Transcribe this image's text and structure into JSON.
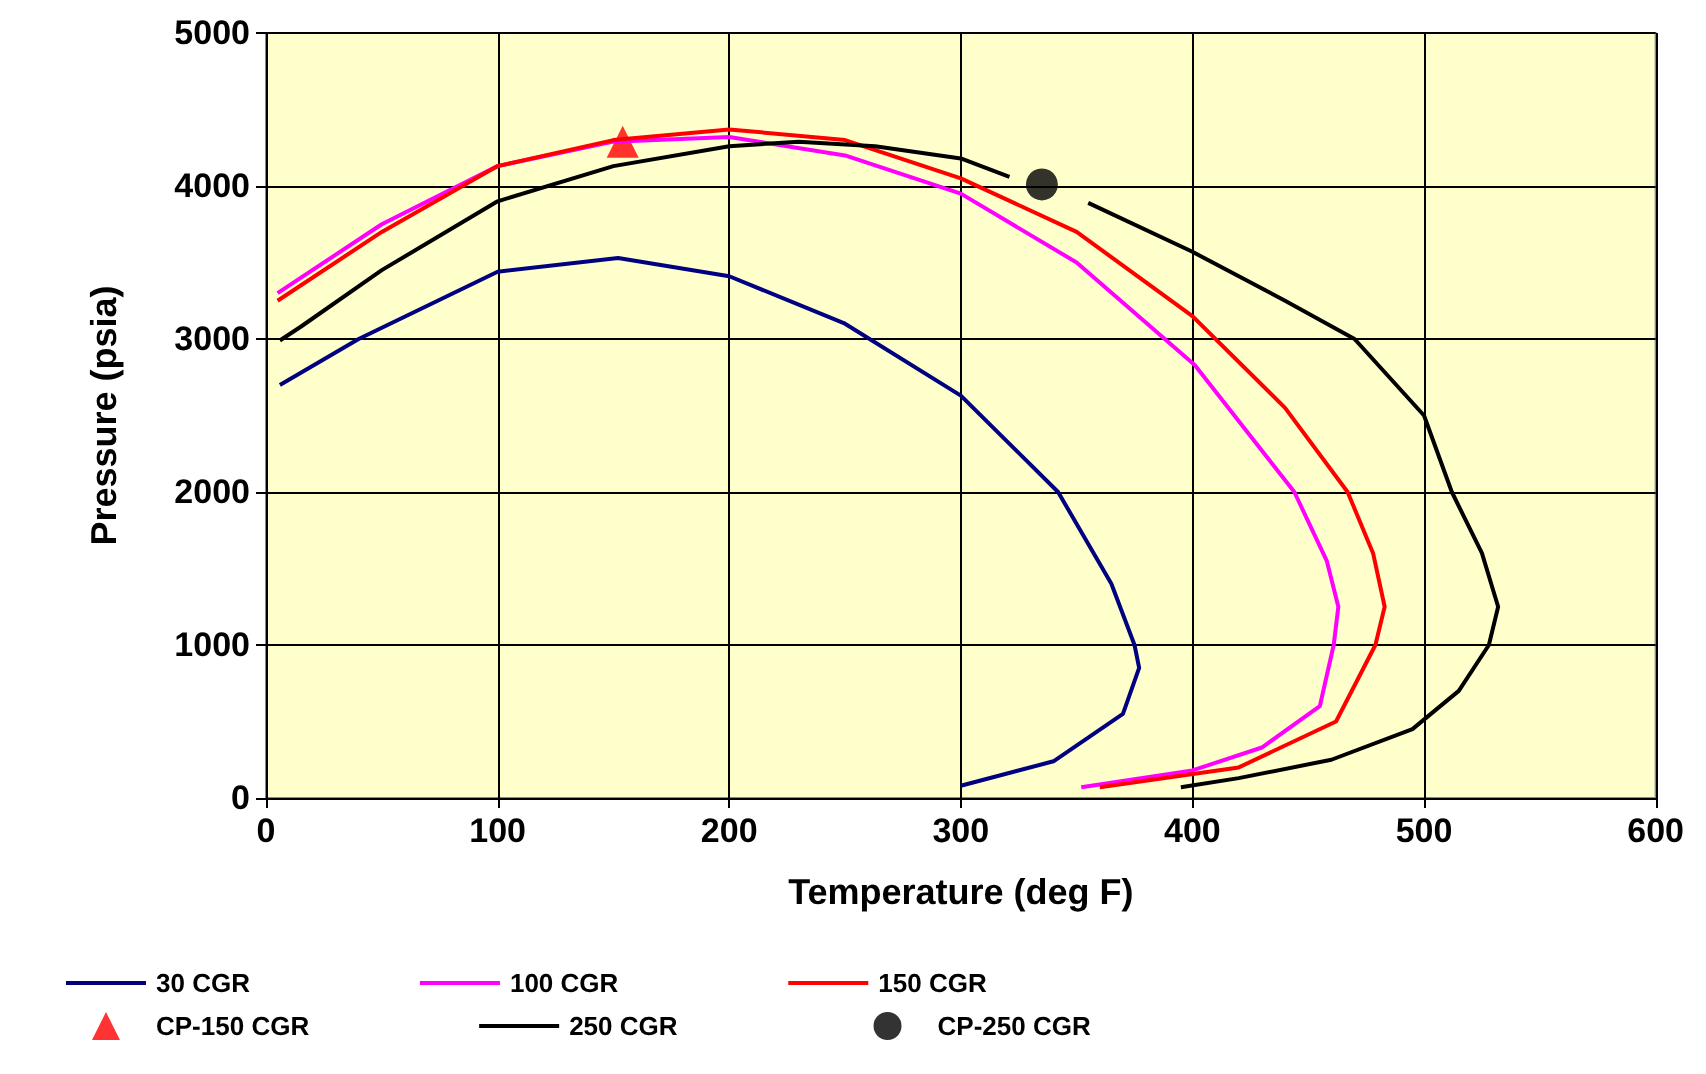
{
  "chart_data": {
    "type": "line",
    "xlabel": "Temperature (deg F)",
    "ylabel": "Pressure (psia)",
    "xlim": [
      0,
      600
    ],
    "xticks": [
      0,
      100,
      200,
      300,
      400,
      500,
      600
    ],
    "ylim": [
      0,
      5000
    ],
    "yticks": [
      0,
      1000,
      2000,
      3000,
      4000,
      5000
    ],
    "grid": true,
    "legend": "bottom",
    "marker": "none",
    "line_style": "solid",
    "series": [
      {
        "name": "30 CGR",
        "color": "#000080",
        "x": [
          6,
          40,
          100,
          152,
          200,
          250,
          300,
          342,
          365,
          375,
          377,
          370,
          340,
          300
        ],
        "values": [
          2700,
          3000,
          3440,
          3530,
          3410,
          3100,
          2630,
          2000,
          1400,
          1000,
          850,
          550,
          240,
          80
        ]
      },
      {
        "name": "100 CGR",
        "color": "#ff00ff",
        "x": [
          5,
          50,
          100,
          150,
          200,
          250,
          300,
          350,
          401,
          444,
          458,
          463,
          461,
          455,
          430,
          400,
          352
        ],
        "values": [
          3300,
          3750,
          4130,
          4290,
          4320,
          4200,
          3950,
          3500,
          2830,
          2000,
          1550,
          1250,
          1000,
          600,
          330,
          180,
          70
        ]
      },
      {
        "name": "150 CGR",
        "color": "#ff0000",
        "x": [
          5,
          50,
          100,
          150,
          200,
          250,
          300,
          350,
          400,
          440,
          467,
          478,
          483,
          479,
          462,
          420,
          360
        ],
        "values": [
          3250,
          3700,
          4130,
          4300,
          4370,
          4300,
          4050,
          3700,
          3150,
          2550,
          2000,
          1600,
          1250,
          1000,
          500,
          200,
          70
        ]
      },
      {
        "name": "CP-150 CGR",
        "type": "scatter",
        "marker": "triangle",
        "color": "#ff0000",
        "x": [
          154
        ],
        "values": [
          4290
        ]
      },
      {
        "name": "250 CGR",
        "color": "#000000",
        "x": [
          6,
          15,
          50,
          100,
          150,
          200,
          230,
          263,
          300,
          321,
          335,
          355,
          400,
          440,
          470,
          500,
          512,
          525,
          532,
          528,
          515,
          495,
          460,
          420,
          395
        ],
        "values": [
          2990,
          3080,
          3450,
          3900,
          4130,
          4260,
          4290,
          4260,
          4180,
          4060,
          null,
          3890,
          3570,
          3250,
          3000,
          2500,
          2000,
          1600,
          1250,
          1000,
          700,
          450,
          250,
          130,
          70
        ]
      },
      {
        "name": "CP-250 CGR",
        "type": "scatter",
        "marker": "circle",
        "color": "#000000",
        "x": [
          335
        ],
        "values": [
          4010
        ]
      }
    ]
  }
}
